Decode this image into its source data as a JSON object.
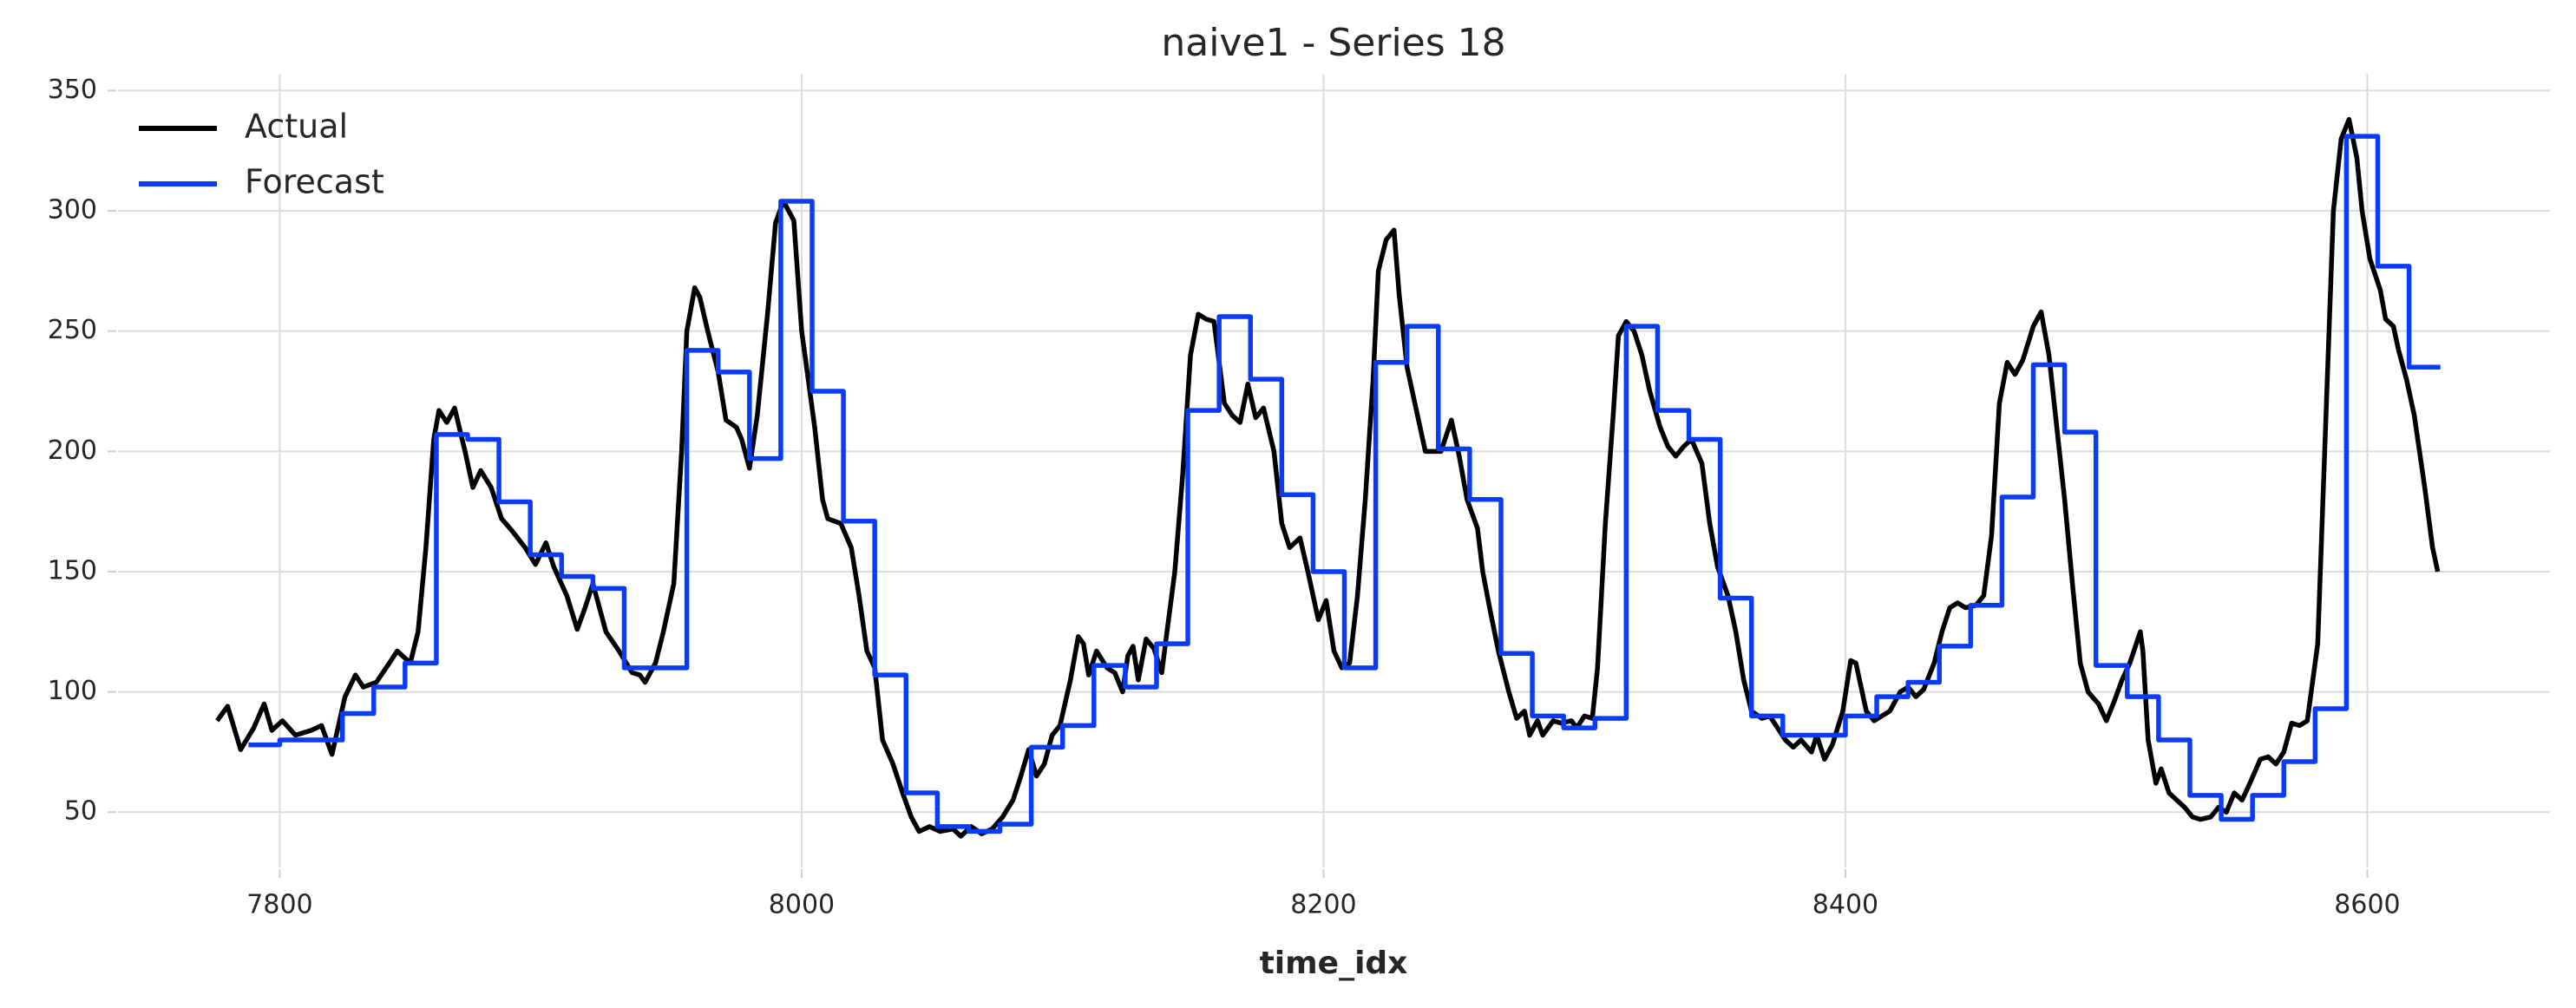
{
  "chart_data": {
    "type": "line",
    "title": "naive1 - Series 18",
    "x_label": "time_idx",
    "xlim": [
      7738,
      8670
    ],
    "ylim": [
      27,
      357
    ],
    "xticks": [
      7800,
      8000,
      8200,
      8400,
      8600
    ],
    "yticks": [
      50,
      100,
      150,
      200,
      250,
      300,
      350
    ],
    "grid": true,
    "legend": "upper left",
    "series": [
      {
        "name": "Actual",
        "color": "#000000",
        "step": false,
        "x": [
          7776,
          7780,
          7785,
          7790,
          7794,
          7797,
          7801,
          7806,
          7812,
          7816,
          7820,
          7825,
          7829,
          7832,
          7837,
          7842,
          7845,
          7850,
          7853,
          7856,
          7859,
          7861,
          7864,
          7867,
          7871,
          7874,
          7877,
          7881,
          7885,
          7889,
          7894,
          7898,
          7902,
          7905,
          7910,
          7914,
          7917,
          7920,
          7925,
          7930,
          7935,
          7938,
          7940,
          7944,
          7947,
          7951,
          7954,
          7956,
          7959,
          7961,
          7964,
          7968,
          7971,
          7975,
          7977,
          7980,
          7983,
          7987,
          7990,
          7993,
          7997,
          8000,
          8005,
          8008,
          8010,
          8015,
          8019,
          8022,
          8025,
          8028,
          8031,
          8035,
          8039,
          8042,
          8045,
          8049,
          8053,
          8058,
          8061,
          8065,
          8069,
          8073,
          8077,
          8081,
          8084,
          8087,
          8090,
          8093,
          8096,
          8099,
          8103,
          8106,
          8108,
          8110,
          8113,
          8117,
          8120,
          8123,
          8125,
          8127,
          8129,
          8132,
          8135,
          8138,
          8140,
          8143,
          8146,
          8149,
          8152,
          8155,
          8158,
          8162,
          8165,
          8168,
          8171,
          8174,
          8177,
          8181,
          8184,
          8187,
          8191,
          8194,
          8198,
          8201,
          8204,
          8207,
          8210,
          8213,
          8216,
          8219,
          8221,
          8224,
          8227,
          8229,
          8232,
          8236,
          8239,
          8242,
          8245,
          8249,
          8252,
          8255,
          8259,
          8261,
          8264,
          8267,
          8271,
          8274,
          8277,
          8279,
          8282,
          8284,
          8288,
          8291,
          8295,
          8297,
          8300,
          8303,
          8305,
          8308,
          8311,
          8313,
          8316,
          8319,
          8322,
          8325,
          8329,
          8332,
          8335,
          8338,
          8341,
          8345,
          8348,
          8351,
          8355,
          8358,
          8361,
          8364,
          8368,
          8371,
          8374,
          8377,
          8380,
          8383,
          8387,
          8389,
          8392,
          8395,
          8399,
          8402,
          8404,
          8408,
          8411,
          8414,
          8417,
          8421,
          8424,
          8427,
          8430,
          8434,
          8437,
          8440,
          8443,
          8446,
          8450,
          8453,
          8456,
          8459,
          8462,
          8465,
          8468,
          8472,
          8475,
          8478,
          8481,
          8484,
          8487,
          8490,
          8493,
          8497,
          8500,
          8503,
          8506,
          8509,
          8513,
          8514,
          8516,
          8519,
          8521,
          8524,
          8527,
          8530,
          8533,
          8536,
          8540,
          8543,
          8546,
          8549,
          8552,
          8555,
          8559,
          8562,
          8565,
          8568,
          8571,
          8574,
          8577,
          8581,
          8584,
          8587,
          8590,
          8593,
          8596,
          8598,
          8601,
          8605,
          8607,
          8610,
          8612,
          8615,
          8618,
          8622,
          8625,
          8627
        ],
        "values": [
          88,
          94,
          76,
          85,
          95,
          84,
          88,
          82,
          84,
          86,
          74,
          98,
          107,
          102,
          104,
          112,
          117,
          112,
          125,
          160,
          205,
          217,
          212,
          218,
          200,
          185,
          192,
          185,
          172,
          167,
          160,
          153,
          162,
          152,
          140,
          126,
          135,
          145,
          125,
          117,
          108,
          107,
          104,
          112,
          125,
          145,
          200,
          250,
          268,
          264,
          250,
          233,
          213,
          210,
          205,
          193,
          215,
          258,
          295,
          304,
          296,
          250,
          210,
          180,
          172,
          170,
          160,
          140,
          117,
          110,
          80,
          70,
          57,
          48,
          42,
          44,
          42,
          43,
          40,
          44,
          41,
          43,
          48,
          55,
          65,
          76,
          65,
          70,
          82,
          86,
          105,
          123,
          120,
          107,
          117,
          110,
          108,
          100,
          115,
          119,
          105,
          122,
          118,
          108,
          125,
          150,
          190,
          240,
          257,
          255,
          254,
          220,
          215,
          212,
          228,
          214,
          218,
          200,
          170,
          160,
          164,
          150,
          130,
          138,
          117,
          110,
          112,
          140,
          180,
          230,
          275,
          288,
          292,
          265,
          235,
          215,
          200,
          200,
          200,
          213,
          198,
          180,
          168,
          150,
          133,
          117,
          100,
          89,
          92,
          82,
          88,
          82,
          88,
          87,
          88,
          85,
          90,
          89,
          110,
          170,
          215,
          248,
          254,
          250,
          240,
          225,
          210,
          202,
          198,
          202,
          205,
          195,
          170,
          152,
          140,
          125,
          105,
          92,
          89,
          90,
          85,
          80,
          77,
          80,
          75,
          82,
          72,
          78,
          92,
          113,
          112,
          92,
          88,
          90,
          92,
          100,
          102,
          98,
          101,
          112,
          125,
          135,
          137,
          135,
          136,
          140,
          165,
          220,
          237,
          232,
          238,
          252,
          258,
          240,
          210,
          180,
          145,
          112,
          100,
          95,
          88,
          96,
          105,
          112,
          125,
          117,
          80,
          62,
          68,
          58,
          55,
          52,
          48,
          47,
          48,
          52,
          50,
          58,
          55,
          62,
          72,
          73,
          70,
          75,
          87,
          86,
          88,
          120,
          210,
          300,
          330,
          338,
          322,
          300,
          280,
          267,
          255,
          252,
          242,
          230,
          215,
          185,
          160,
          150
        ]
      },
      {
        "name": "Forecast",
        "color": "#0a3cf5",
        "step": true,
        "x": [
          7788,
          7800,
          7812,
          7824,
          7836,
          7848,
          7860,
          7872,
          7884,
          7896,
          7908,
          7920,
          7932,
          7944,
          7956,
          7968,
          7980,
          7992,
          8004,
          8016,
          8028,
          8040,
          8052,
          8064,
          8076,
          8088,
          8100,
          8112,
          8124,
          8136,
          8148,
          8160,
          8172,
          8184,
          8196,
          8208,
          8220,
          8232,
          8244,
          8256,
          8268,
          8280,
          8292,
          8304,
          8316,
          8328,
          8340,
          8352,
          8364,
          8376,
          8388,
          8400,
          8412,
          8424,
          8436,
          8448,
          8460,
          8472,
          8484,
          8496,
          8508,
          8520,
          8532,
          8544,
          8556,
          8568,
          8580,
          8592,
          8604,
          8616
        ],
        "values": [
          78,
          80,
          80,
          91,
          102,
          112,
          207,
          205,
          179,
          157,
          148,
          143,
          110,
          110,
          242,
          233,
          197,
          304,
          225,
          171,
          107,
          58,
          44,
          42,
          45,
          77,
          86,
          111,
          102,
          120,
          217,
          256,
          230,
          182,
          150,
          110,
          237,
          252,
          201,
          180,
          116,
          90,
          85,
          89,
          252,
          217,
          205,
          139,
          90,
          82,
          82,
          90,
          98,
          104,
          119,
          136,
          181,
          236,
          208,
          111,
          98,
          80,
          57,
          47,
          57,
          71,
          93,
          331,
          277,
          235
        ]
      }
    ]
  }
}
